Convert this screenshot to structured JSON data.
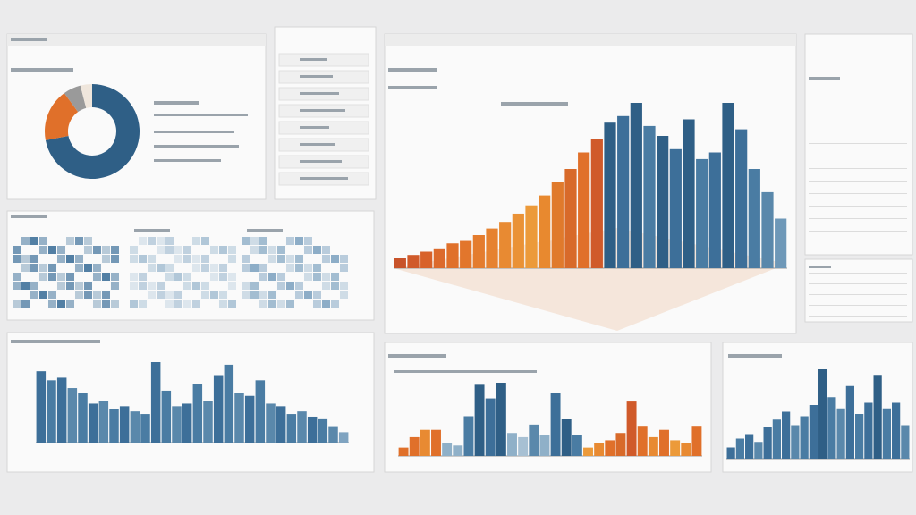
{
  "chart_data": [
    {
      "type": "pie",
      "values": [
        72,
        18,
        6,
        4
      ],
      "colors": [
        "#2f5f86",
        "#e0702a",
        "#9a9a9a",
        "#efe6dc"
      ]
    },
    {
      "type": "bar",
      "values": [
        6,
        8,
        10,
        12,
        15,
        17,
        20,
        24,
        28,
        33,
        38,
        44,
        52,
        60,
        70,
        78,
        88,
        92,
        100,
        86,
        80,
        72,
        90,
        66,
        70,
        100,
        84,
        60,
        46,
        30
      ],
      "colors": [
        "#c8532a",
        "#d05a2a",
        "#d8622a",
        "#dc6a2c",
        "#e0702a",
        "#e2762c",
        "#e47c2e",
        "#e68230",
        "#e88a32",
        "#ea9236",
        "#ec9a3a",
        "#e8892f",
        "#e07a2c",
        "#d86a2a",
        "#e0702a",
        "#d05a2a",
        "#2f5f86",
        "#3d6f99",
        "#2f5f86",
        "#4a7ca3",
        "#2f5f86",
        "#3d6f99",
        "#2f5f86",
        "#4a7ca3",
        "#3d6f99",
        "#2f5f86",
        "#3d6f99",
        "#4a7ca3",
        "#5a88ab",
        "#6e98b8"
      ]
    },
    {
      "type": "bar",
      "values": [
        55,
        48,
        50,
        42,
        38,
        30,
        32,
        26,
        28,
        24,
        22,
        62,
        40,
        28,
        30,
        45,
        32,
        52,
        60,
        38,
        36,
        48,
        30,
        28,
        22,
        24,
        20,
        18,
        12,
        8
      ],
      "colors": [
        "#3d6f99",
        "#4a7ca3",
        "#3d6f99",
        "#5a88ab",
        "#4a7ca3",
        "#3d6f99",
        "#5a88ab",
        "#4a7ca3",
        "#3d6f99",
        "#5a88ab",
        "#4a7ca3",
        "#3d6f99",
        "#4a7ca3",
        "#5a88ab",
        "#3d6f99",
        "#4a7ca3",
        "#5a88ab",
        "#3d6f99",
        "#4a7ca3",
        "#5a88ab",
        "#3d6f99",
        "#4a7ca3",
        "#5a88ab",
        "#3d6f99",
        "#4a7ca3",
        "#5a88ab",
        "#3d6f99",
        "#4a7ca3",
        "#5a88ab",
        "#7fa3c0"
      ]
    },
    {
      "type": "bar",
      "values": [
        8,
        18,
        25,
        25,
        12,
        10,
        38,
        68,
        55,
        70,
        22,
        18,
        30,
        20,
        60,
        35,
        20,
        8,
        12,
        15,
        22,
        52,
        28,
        18,
        25,
        15,
        12,
        28
      ],
      "colors": [
        "#e0702a",
        "#e0702a",
        "#e88a32",
        "#e0702a",
        "#8fb0c8",
        "#8fb0c8",
        "#4a7ca3",
        "#2f5f86",
        "#3d6f99",
        "#2f5f86",
        "#8fb0c8",
        "#a7c0d3",
        "#5a88ab",
        "#8fb0c8",
        "#3d6f99",
        "#2f5f86",
        "#4a7ca3",
        "#ec9a3a",
        "#e88a32",
        "#e0702a",
        "#d86a2a",
        "#d05a2a",
        "#e0702a",
        "#e88a32",
        "#e0702a",
        "#ec9a3a",
        "#e88a32",
        "#e0702a"
      ]
    },
    {
      "type": "bar",
      "values": [
        10,
        18,
        22,
        15,
        28,
        35,
        42,
        30,
        38,
        48,
        80,
        55,
        45,
        65,
        40,
        50,
        75,
        45,
        50,
        30
      ],
      "colors": [
        "#3d6f99",
        "#4a7ca3",
        "#3d6f99",
        "#5a88ab",
        "#3d6f99",
        "#4a7ca3",
        "#3d6f99",
        "#5a88ab",
        "#4a7ca3",
        "#3d6f99",
        "#2f5f86",
        "#4a7ca3",
        "#5a88ab",
        "#3d6f99",
        "#4a7ca3",
        "#3d6f99",
        "#2f5f86",
        "#4a7ca3",
        "#3d6f99",
        "#5a88ab"
      ]
    }
  ]
}
